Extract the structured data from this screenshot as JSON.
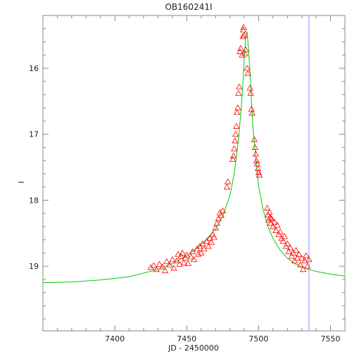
{
  "chart_data": {
    "type": "scatter",
    "title": "OB160241I",
    "xlabel": "JD - 2450000",
    "ylabel": "I",
    "xlim": [
      7350,
      7560
    ],
    "ylim": [
      19.98,
      15.2
    ],
    "y_inverted": true,
    "x_ticks": [
      7400,
      7450,
      7500,
      7550
    ],
    "y_ticks": [
      16,
      17,
      18,
      19
    ],
    "grid": false,
    "vertical_marker": {
      "x": 7535,
      "color": "#8a8aff"
    },
    "colors": {
      "points": "#ff0000",
      "model": "#00cc00",
      "frame": "#888888"
    },
    "series": [
      {
        "kind": "model_curve",
        "x": [
          7350,
          7370,
          7390,
          7410,
          7430,
          7440,
          7450,
          7460,
          7470,
          7475,
          7480,
          7483,
          7486,
          7488,
          7489,
          7490,
          7491,
          7492,
          7493,
          7494,
          7495,
          7496,
          7498,
          7500,
          7503,
          7506,
          7510,
          7515,
          7520,
          7525,
          7530,
          7535,
          7540,
          7550,
          7560
        ],
        "y": [
          19.25,
          19.24,
          19.21,
          19.16,
          19.05,
          18.96,
          18.84,
          18.68,
          18.44,
          18.24,
          17.93,
          17.6,
          17.08,
          16.58,
          16.25,
          15.85,
          15.52,
          15.45,
          15.72,
          16.05,
          16.48,
          16.88,
          17.36,
          17.79,
          18.13,
          18.38,
          18.58,
          18.76,
          18.88,
          18.96,
          19.01,
          19.05,
          19.08,
          19.12,
          19.15
        ]
      },
      {
        "kind": "observations",
        "points": [
          [
            7425,
            19.02
          ],
          [
            7427,
            18.99
          ],
          [
            7429,
            19.05
          ],
          [
            7431,
            18.97
          ],
          [
            7433,
            19.01
          ],
          [
            7435,
            19.07
          ],
          [
            7436,
            18.93
          ],
          [
            7438,
            18.98
          ],
          [
            7440,
            18.9
          ],
          [
            7441,
            19.03
          ],
          [
            7443,
            18.92
          ],
          [
            7444,
            18.82
          ],
          [
            7445,
            18.97
          ],
          [
            7446,
            18.85
          ],
          [
            7447,
            18.8
          ],
          [
            7448,
            18.95
          ],
          [
            7449,
            18.88
          ],
          [
            7450,
            18.83
          ],
          [
            7451,
            18.96
          ],
          [
            7453,
            18.86
          ],
          [
            7454,
            18.78
          ],
          [
            7455,
            18.9
          ],
          [
            7457,
            18.74
          ],
          [
            7458,
            18.82
          ],
          [
            7459,
            18.7
          ],
          [
            7460,
            18.8
          ],
          [
            7461,
            18.66
          ],
          [
            7462,
            18.74
          ],
          [
            7464,
            18.62
          ],
          [
            7465,
            18.7
          ],
          [
            7466,
            18.58
          ],
          [
            7467,
            18.64
          ],
          [
            7468,
            18.52
          ],
          [
            7469,
            18.56
          ],
          [
            7470,
            18.42
          ],
          [
            7471,
            18.35
          ],
          [
            7472,
            18.28
          ],
          [
            7473,
            18.19
          ],
          [
            7474,
            18.23
          ],
          [
            7475,
            18.16
          ],
          [
            7478,
            17.8
          ],
          [
            7478.5,
            17.72
          ],
          [
            7482,
            17.38
          ],
          [
            7482.5,
            17.33
          ],
          [
            7483,
            17.22
          ],
          [
            7483.5,
            17.1
          ],
          [
            7484,
            17.0
          ],
          [
            7484.5,
            16.88
          ],
          [
            7485,
            16.67
          ],
          [
            7485.5,
            16.6
          ],
          [
            7486,
            16.38
          ],
          [
            7486.5,
            16.28
          ],
          [
            7487,
            15.75
          ],
          [
            7487.5,
            15.7
          ],
          [
            7488.5,
            15.8
          ],
          [
            7489,
            15.52
          ],
          [
            7489.3,
            15.42
          ],
          [
            7489.6,
            15.38
          ],
          [
            7490,
            15.5
          ],
          [
            7490.5,
            15.78
          ],
          [
            7491,
            15.72
          ],
          [
            7492,
            16.0
          ],
          [
            7492.5,
            16.08
          ],
          [
            7494,
            16.3
          ],
          [
            7494.5,
            16.38
          ],
          [
            7495,
            16.62
          ],
          [
            7495.5,
            16.68
          ],
          [
            7497,
            17.08
          ],
          [
            7497.5,
            17.2
          ],
          [
            7498,
            17.3
          ],
          [
            7498.5,
            17.4
          ],
          [
            7499,
            17.45
          ],
          [
            7499.5,
            17.52
          ],
          [
            7500,
            17.58
          ],
          [
            7500.5,
            17.62
          ],
          [
            7506,
            18.12
          ],
          [
            7506.5,
            18.22
          ],
          [
            7507,
            18.3
          ],
          [
            7507.5,
            18.18
          ],
          [
            7508,
            18.26
          ],
          [
            7508.5,
            18.35
          ],
          [
            7509,
            18.28
          ],
          [
            7510,
            18.4
          ],
          [
            7511,
            18.33
          ],
          [
            7512,
            18.46
          ],
          [
            7513,
            18.38
          ],
          [
            7514,
            18.52
          ],
          [
            7515,
            18.48
          ],
          [
            7516,
            18.58
          ],
          [
            7517,
            18.62
          ],
          [
            7518,
            18.55
          ],
          [
            7519,
            18.7
          ],
          [
            7520,
            18.66
          ],
          [
            7521,
            18.78
          ],
          [
            7522,
            18.72
          ],
          [
            7523,
            18.85
          ],
          [
            7524,
            18.8
          ],
          [
            7525,
            18.92
          ],
          [
            7526,
            18.76
          ],
          [
            7527,
            18.88
          ],
          [
            7528,
            18.82
          ],
          [
            7529,
            18.98
          ],
          [
            7530,
            18.88
          ],
          [
            7531,
            19.05
          ],
          [
            7532,
            18.92
          ],
          [
            7533,
            18.84
          ],
          [
            7534,
            19.0
          ],
          [
            7535,
            18.9
          ]
        ]
      }
    ]
  }
}
